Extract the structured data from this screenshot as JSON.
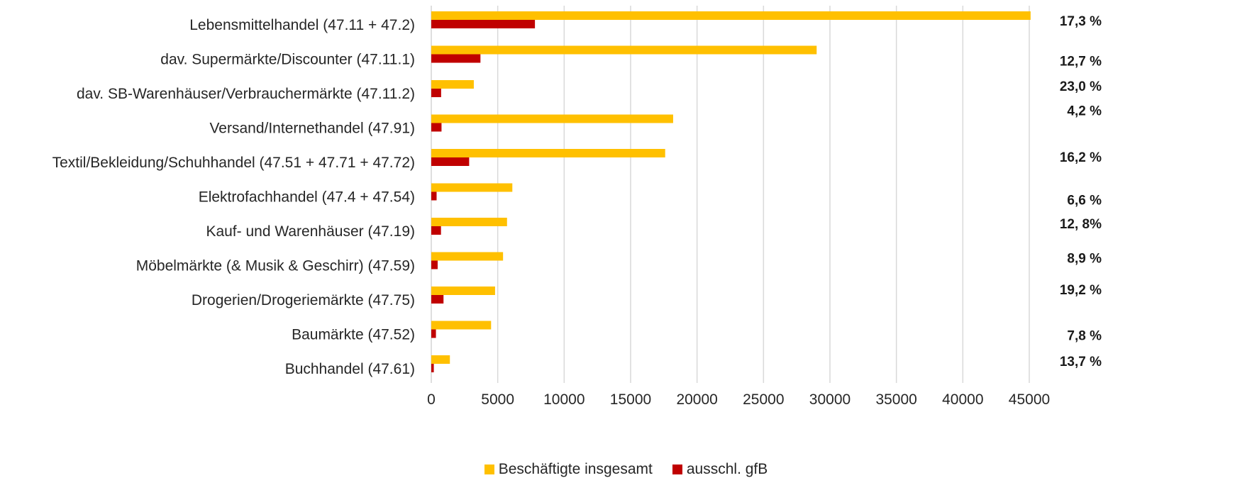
{
  "chart_data": {
    "type": "bar",
    "orientation": "horizontal",
    "categories": [
      "Lebensmittelhandel (47.11 + 47.2)",
      "dav. Supermärkte/Discounter (47.11.1)",
      "dav. SB-Warenhäuser/Verbrauchermärkte (47.11.2)",
      "Versand/Internethandel (47.91)",
      "Textil/Bekleidung/Schuhhandel (47.51 + 47.71 + 47.72)",
      "Elektrofachhandel (47.4 + 47.54)",
      "Kauf- und Warenhäuser (47.19)",
      "Möbelmärkte (& Musik & Geschirr) (47.59)",
      "Drogerien/Drogeriemärkte (47.75)",
      "Baumärkte (47.52)",
      "Buchhandel (47.61)"
    ],
    "series": [
      {
        "name": "Beschäftigte insgesamt",
        "color": "#FFC000",
        "values": [
          45100,
          29000,
          3200,
          18200,
          17600,
          6100,
          5700,
          5400,
          4800,
          4500,
          1400
        ]
      },
      {
        "name": "ausschl. gfB",
        "color": "#C00000",
        "values": [
          7800,
          3700,
          740,
          770,
          2850,
          400,
          730,
          480,
          920,
          350,
          190
        ]
      }
    ],
    "annotations": [
      "17,3 %",
      "12,7 %",
      "23,0 %",
      "4,2 %",
      "16,2 %",
      "6,6 %",
      "12, 8%",
      "8,9 %",
      "19,2 %",
      "7,8 %",
      "13,7 %"
    ],
    "xticks": [
      "0",
      "5000",
      "10000",
      "15000",
      "20000",
      "25000",
      "30000",
      "35000",
      "40000",
      "45000"
    ],
    "xlim": [
      0,
      45000
    ],
    "grid": true,
    "legend_position": "bottom",
    "title": "",
    "xlabel": "",
    "ylabel": ""
  },
  "legend": {
    "items": [
      {
        "label": "Beschäftigte insgesamt"
      },
      {
        "label": "ausschl. gfB"
      }
    ]
  }
}
